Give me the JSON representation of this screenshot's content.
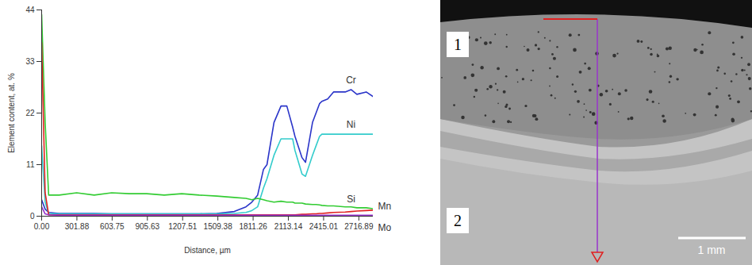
{
  "chart_data": {
    "type": "line",
    "x_label": "Distance, µm",
    "y_label": "Element content, at. %",
    "x": [
      0,
      30,
      60,
      150,
      300,
      450,
      600,
      750,
      900,
      1050,
      1200,
      1350,
      1500,
      1650,
      1750,
      1800,
      1850,
      1900,
      1930,
      1990,
      2050,
      2100,
      2150,
      2170,
      2230,
      2260,
      2320,
      2350,
      2380,
      2400,
      2450,
      2500,
      2600,
      2650,
      2700,
      2780,
      2840
    ],
    "series": [
      {
        "name": "Cr",
        "color": "#2b35c9",
        "values": [
          3.5,
          1.5,
          0.8,
          0.6,
          0.6,
          0.6,
          0.5,
          0.5,
          0.5,
          0.5,
          0.5,
          0.5,
          0.6,
          1.0,
          2.0,
          3.0,
          4.5,
          10,
          11,
          20,
          23.5,
          23.5,
          19,
          17,
          12.5,
          11.5,
          20,
          22,
          24,
          24.5,
          25,
          26.5,
          26.5,
          27,
          26,
          26.5,
          25.5
        ]
      },
      {
        "name": "Ni",
        "color": "#33cccc",
        "values": [
          15,
          3,
          0.6,
          0.5,
          0.5,
          0.5,
          0.5,
          0.5,
          0.5,
          0.5,
          0.5,
          0.5,
          0.5,
          0.6,
          0.8,
          1.2,
          2,
          6,
          8,
          13,
          16.5,
          16.5,
          16.5,
          14,
          9,
          8.5,
          13,
          15,
          17,
          17.5,
          17.5,
          17.5,
          17.5,
          17.5,
          17.5,
          17.5,
          17.5
        ]
      },
      {
        "name": "Si",
        "color": "#33cc33",
        "values": [
          43,
          20,
          4.5,
          4.5,
          5,
          4.5,
          5,
          4.8,
          4.8,
          4.5,
          4.8,
          4.5,
          4.3,
          4,
          3.8,
          3.5,
          3.8,
          3.5,
          3.3,
          3,
          3.2,
          3,
          3,
          2.8,
          2.8,
          2.6,
          2.5,
          2.5,
          2.4,
          2.3,
          2.2,
          2.2,
          2,
          2,
          1.8,
          1.8,
          1.6
        ]
      },
      {
        "name": "Mn",
        "color": "#e02020",
        "values": [
          37,
          5,
          0.3,
          0.3,
          0.3,
          0.3,
          0.3,
          0.3,
          0.3,
          0.3,
          0.3,
          0.3,
          0.3,
          0.3,
          0.3,
          0.3,
          0.3,
          0.3,
          0.3,
          0.3,
          0.3,
          0.3,
          0.3,
          0.3,
          0.4,
          0.4,
          0.5,
          0.5,
          0.6,
          0.6,
          0.7,
          0.8,
          0.9,
          1.0,
          1.1,
          1.2,
          1.3
        ]
      },
      {
        "name": "Mo",
        "color": "#9933cc",
        "values": [
          2,
          0.5,
          0.3,
          0.2,
          0.2,
          0.2,
          0.2,
          0.2,
          0.2,
          0.2,
          0.2,
          0.2,
          0.2,
          0.2,
          0.2,
          0.2,
          0.2,
          0.2,
          0.2,
          0.2,
          0.2,
          0.2,
          0.2,
          0.2,
          0.2,
          0.2,
          0.2,
          0.2,
          0.2,
          0.2,
          0.2,
          0.2,
          0.2,
          0.2,
          0.2,
          0.2,
          0.2
        ]
      }
    ],
    "xlim": [
      0,
      2840
    ],
    "ylim": [
      0,
      44
    ],
    "xticks": [
      {
        "value": 0,
        "label": "0.00"
      },
      301.88,
      603.75,
      905.63,
      1207.51,
      1509.38,
      1811.26,
      2113.14,
      2415.01,
      2716.89
    ],
    "yticks": [
      0,
      11,
      22,
      33,
      44
    ],
    "grid": false
  },
  "micrograph": {
    "region_labels": [
      "1",
      "2"
    ],
    "scale_bar": "1 mm"
  }
}
